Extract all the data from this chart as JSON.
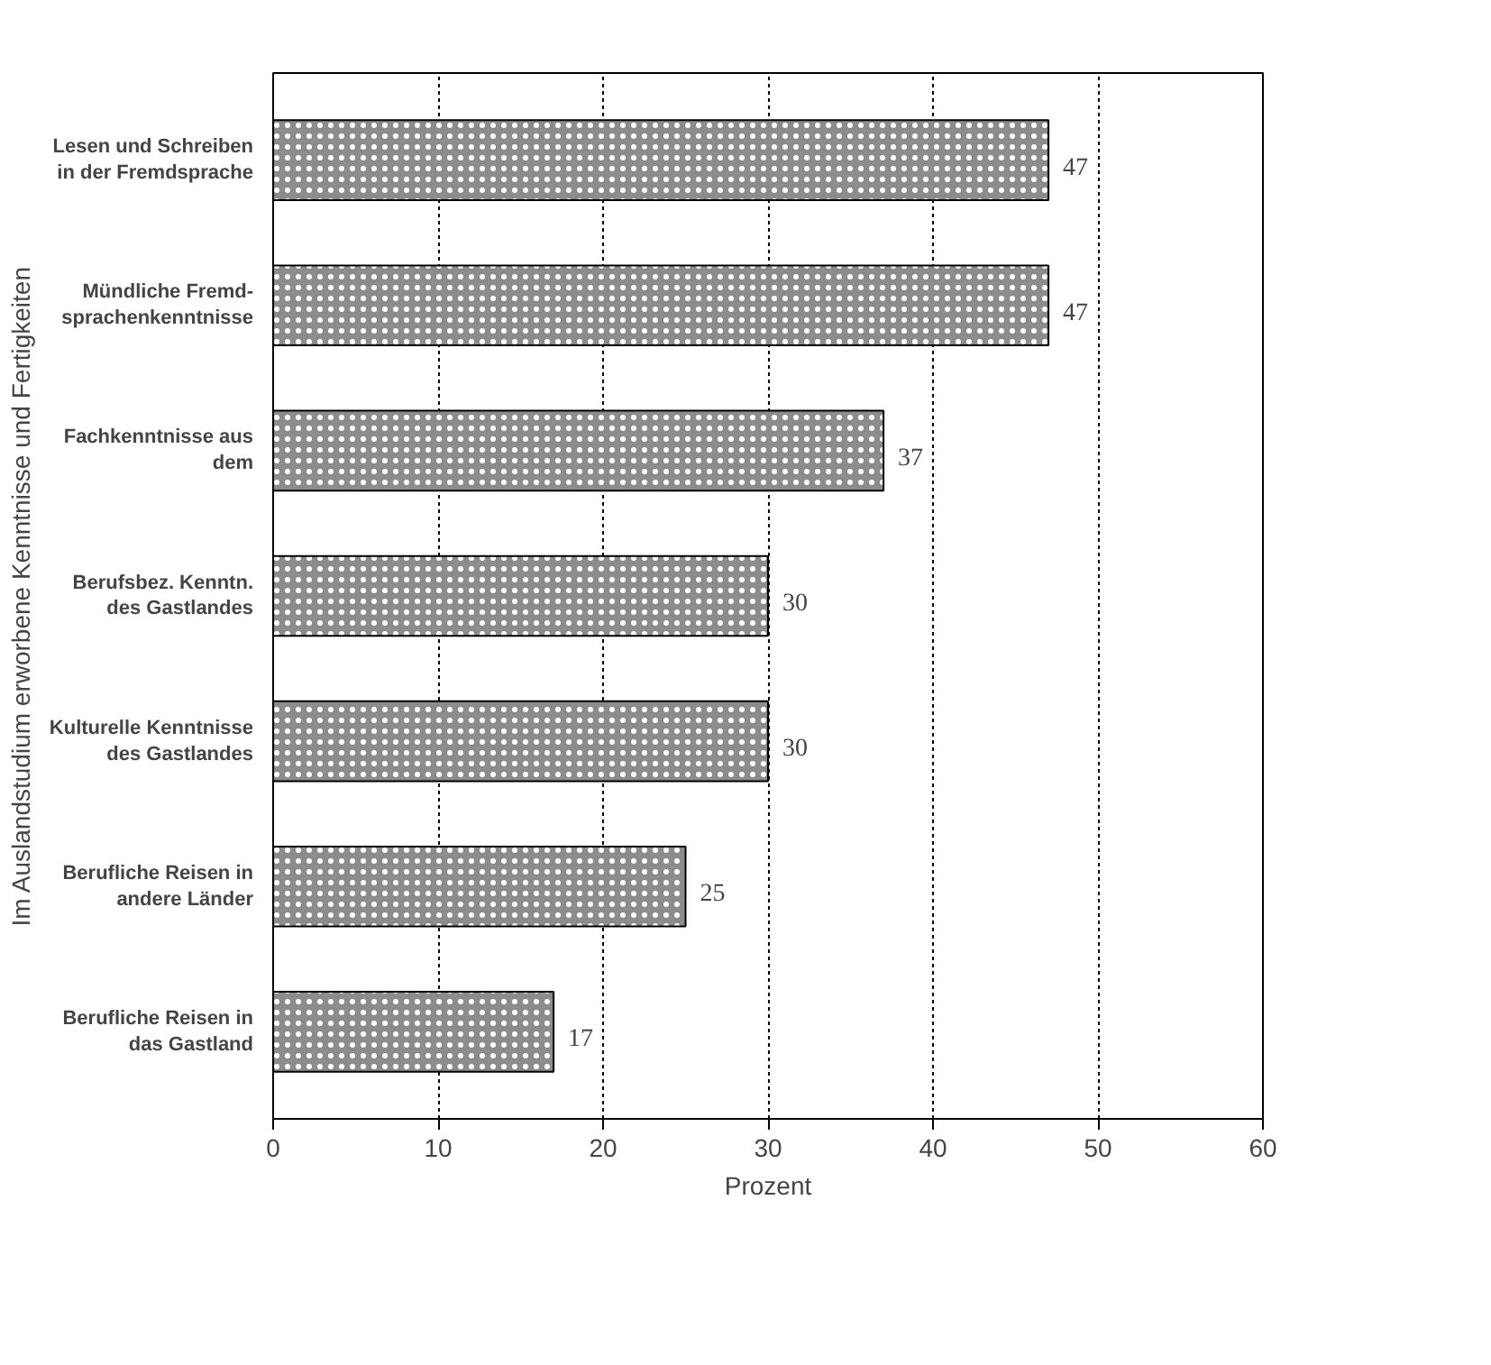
{
  "chart_data": {
    "type": "bar",
    "orientation": "horizontal",
    "xlabel": "Prozent",
    "ylabel": "Im Auslandstudium erworbene Kenntnisse und Fertigkeiten",
    "categories": [
      "Lesen und Schreiben\nin der Fremdsprache",
      "Mündliche Fremd-\nsprachenkenntnisse",
      "Fachkenntnisse aus\ndem",
      "Berufsbez. Kenntn.\ndes Gastlandes",
      "Kulturelle Kenntnisse\ndes Gastlandes",
      "Berufliche Reisen in\nandere Länder",
      "Berufliche Reisen in\ndas Gastland"
    ],
    "values": [
      47,
      47,
      37,
      30,
      30,
      25,
      17
    ],
    "color": "#8c8c8c",
    "data_labels": true,
    "xlim": [
      0,
      60
    ],
    "xticks": [
      0,
      10,
      20,
      30,
      40,
      50,
      60
    ],
    "grid": "x"
  }
}
